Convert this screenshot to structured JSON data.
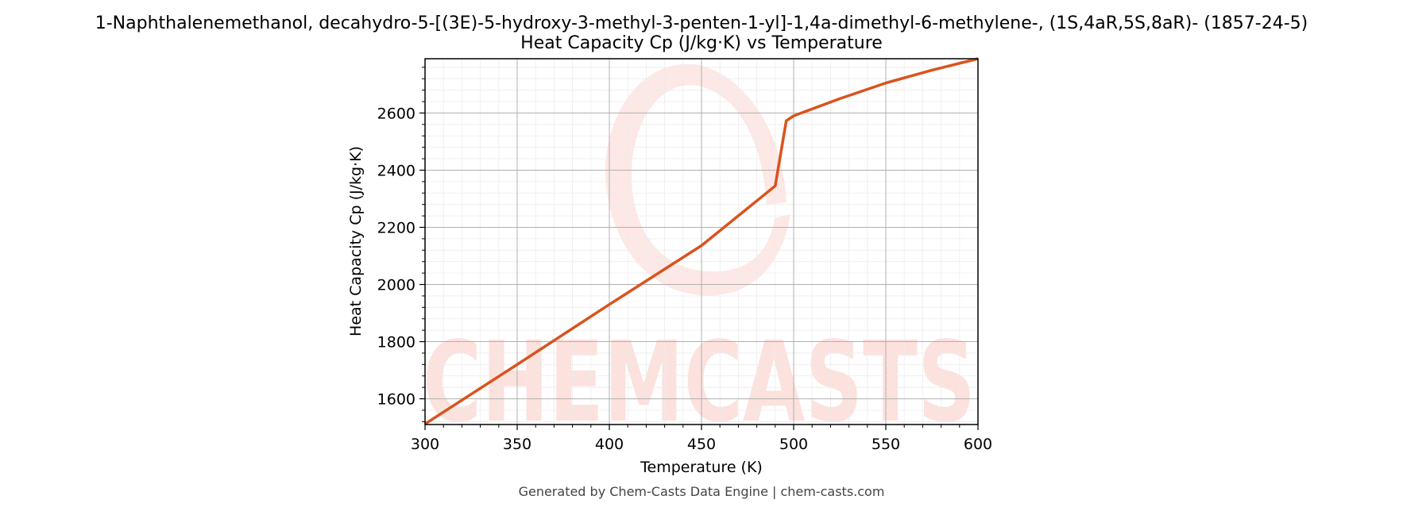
{
  "chart_data": {
    "type": "line",
    "title": "1-Naphthalenemethanol, decahydro-5-[(3E)-5-hydroxy-3-methyl-3-penten-1-yl]-1,4a-dimethyl-6-methylene-, (1S,4aR,5S,8aR)- (1857-24-5)",
    "subtitle": "Heat Capacity Cp (J/kg·K) vs Temperature",
    "xlabel": "Temperature (K)",
    "ylabel": "Heat Capacity Cp (J/kg·K)",
    "xlim": [
      300,
      600
    ],
    "ylim": [
      1510,
      2790
    ],
    "xticks": [
      300,
      350,
      400,
      450,
      500,
      550,
      600
    ],
    "yticks": [
      1600,
      1800,
      2000,
      2200,
      2400,
      2600
    ],
    "grid": true,
    "series": [
      {
        "x": [
          300,
          350,
          400,
          450,
          490,
          496,
          500,
          525,
          550,
          575,
          600
        ],
        "y": [
          1512,
          1720,
          1930,
          2136,
          2345,
          2573,
          2590,
          2650,
          2705,
          2750,
          2790
        ]
      }
    ],
    "line_color": "#d9531e"
  },
  "watermark": {
    "text": "CHEMCASTS",
    "color": "#fbd7d2"
  },
  "footer": "Generated by Chem-Casts Data Engine | chem-casts.com"
}
